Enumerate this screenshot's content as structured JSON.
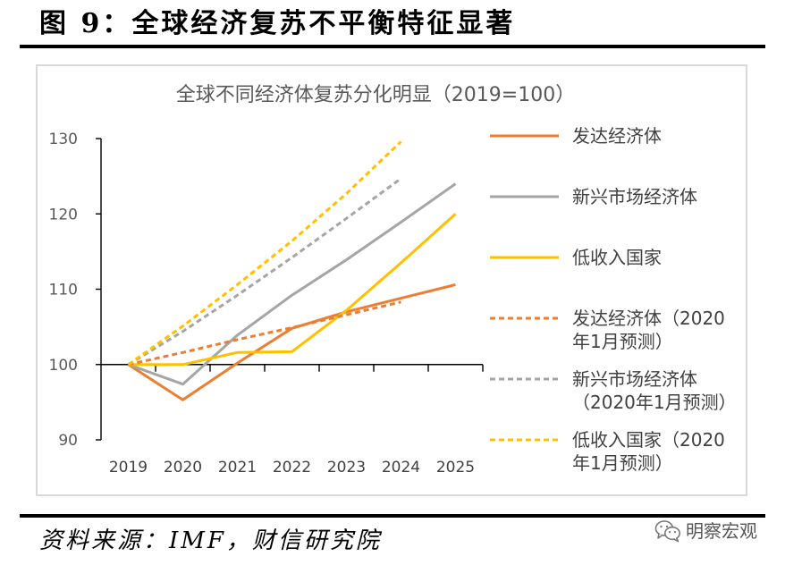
{
  "figure": {
    "title": "图 9：全球经济复苏不平衡特征显著",
    "source": "资料来源：IMF，财信研究院"
  },
  "watermark": {
    "icon": "wechat-icon",
    "text": "明察宏观"
  },
  "chart_data": {
    "type": "line",
    "title": "全球不同经济体复苏分化明显（2019=100）",
    "x": [
      "2019",
      "2020",
      "2021",
      "2022",
      "2023",
      "2024",
      "2025"
    ],
    "ylim": [
      90,
      130
    ],
    "yticks": [
      90,
      100,
      110,
      120,
      130
    ],
    "x_axis_crosses_at": 100,
    "grid": false,
    "legend_position": "right",
    "series": [
      {
        "name": "发达经济体",
        "color": "#ED7D31",
        "line_style": "solid",
        "values": [
          100,
          95.3,
          100.2,
          104.8,
          107.0,
          108.8,
          110.6
        ]
      },
      {
        "name": "新兴市场经济体",
        "color": "#A5A5A5",
        "line_style": "solid",
        "values": [
          100,
          97.4,
          103.9,
          109.2,
          113.9,
          118.9,
          124.0
        ]
      },
      {
        "name": "低收入国家",
        "color": "#FFC000",
        "line_style": "solid",
        "values": [
          100,
          100.0,
          101.6,
          101.7,
          107.2,
          113.5,
          120.0
        ]
      },
      {
        "name": "发达经济体（2020年1月预测）",
        "color": "#ED7D31",
        "line_style": "dashed",
        "values": [
          100,
          101.6,
          103.3,
          104.9,
          106.6,
          108.3,
          null
        ]
      },
      {
        "name": "新兴市场经济体（2020年1月预测）",
        "color": "#A5A5A5",
        "line_style": "dashed",
        "values": [
          100,
          104.4,
          109.2,
          114.2,
          119.4,
          124.7,
          null
        ]
      },
      {
        "name": "低收入国家（2020年1月预测）",
        "color": "#FFC000",
        "line_style": "dashed",
        "values": [
          100,
          105.1,
          110.6,
          116.4,
          122.7,
          129.6,
          null
        ]
      }
    ]
  }
}
